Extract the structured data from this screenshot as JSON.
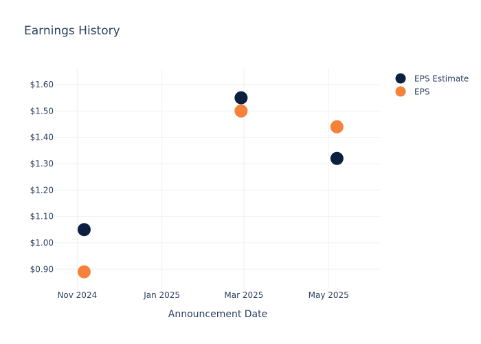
{
  "chart_data": {
    "type": "scatter",
    "title": "Earnings History",
    "xlabel": "Announcement Date",
    "ylabel": "",
    "x_axis_type": "date",
    "xlim": [
      "2024-10-16",
      "2025-06-07"
    ],
    "ylim": [
      0.825,
      1.66
    ],
    "x_ticks": [
      {
        "date": "2024-11-01",
        "label": "Nov 2024"
      },
      {
        "date": "2025-01-01",
        "label": "Jan 2025"
      },
      {
        "date": "2025-03-01",
        "label": "Mar 2025"
      },
      {
        "date": "2025-05-01",
        "label": "May 2025"
      }
    ],
    "y_ticks": [
      {
        "value": 0.9,
        "label": "$0.90"
      },
      {
        "value": 1.0,
        "label": "$1.00"
      },
      {
        "value": 1.1,
        "label": "$1.10"
      },
      {
        "value": 1.2,
        "label": "$1.20"
      },
      {
        "value": 1.3,
        "label": "$1.30"
      },
      {
        "value": 1.4,
        "label": "$1.40"
      },
      {
        "value": 1.5,
        "label": "$1.50"
      },
      {
        "value": 1.6,
        "label": "$1.60"
      }
    ],
    "grid": true,
    "legend_position": "top-right",
    "series": [
      {
        "name": "EPS Estimate",
        "color": "#0b1f3f",
        "points": [
          {
            "date": "2024-11-06",
            "value": 1.05
          },
          {
            "date": "2025-02-27",
            "value": 1.55
          },
          {
            "date": "2025-05-07",
            "value": 1.32
          }
        ]
      },
      {
        "name": "EPS",
        "color": "#f5813a",
        "points": [
          {
            "date": "2024-11-06",
            "value": 0.89
          },
          {
            "date": "2025-02-27",
            "value": 1.5
          },
          {
            "date": "2025-05-07",
            "value": 1.44
          }
        ]
      }
    ]
  }
}
